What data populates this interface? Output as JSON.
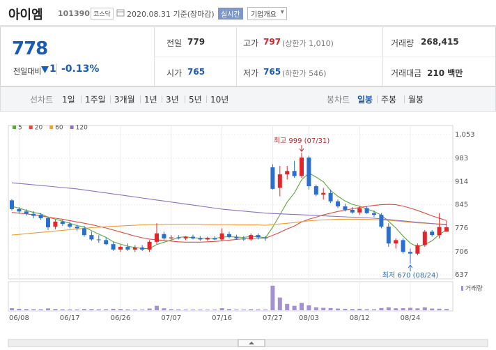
{
  "header": {
    "name": "아이엠",
    "code": "101390",
    "market": "코스닥",
    "date": "2020.08.31 기준(장마감)",
    "realtime": "실시간",
    "company": "기업개요"
  },
  "quote": {
    "price": "778",
    "change_label": "전일대비",
    "change": "1",
    "change_rate": "-0.13%",
    "cells": [
      {
        "label": "전일",
        "value": "779"
      },
      {
        "label": "고가",
        "value": "797",
        "note": "(상한가 1,010)"
      },
      {
        "label": "거래량",
        "value": "268,415"
      },
      {
        "label": "시가",
        "value": "765"
      },
      {
        "label": "저가",
        "value": "765",
        "note": "(하한가 546)"
      },
      {
        "label": "거래대금",
        "value": "210 백만"
      }
    ]
  },
  "tabs": {
    "line_label": "선차트",
    "line_periods": [
      "1일",
      "1주일",
      "3개월",
      "1년",
      "3년",
      "5년",
      "10년"
    ],
    "candle_label": "봉차트",
    "candle_periods": [
      "일봉",
      "주봉",
      "월봉"
    ]
  },
  "chart_data": {
    "type": "candlestick",
    "categories": [
      null,
      "06/08",
      null,
      null,
      null,
      null,
      null,
      null,
      "06/17",
      null,
      null,
      null,
      null,
      null,
      null,
      "06/26",
      null,
      null,
      null,
      null,
      null,
      null,
      "07/07",
      null,
      null,
      null,
      null,
      null,
      null,
      "07/16",
      null,
      null,
      null,
      null,
      null,
      null,
      "07/27",
      null,
      null,
      null,
      null,
      "08/03",
      null,
      null,
      null,
      null,
      null,
      null,
      "08/12",
      null,
      null,
      null,
      null,
      null,
      null,
      "08/24",
      null,
      null,
      null,
      null,
      null
    ],
    "open": [
      858,
      832,
      825,
      818,
      815,
      805,
      780,
      795,
      788,
      780,
      775,
      755,
      742,
      740,
      728,
      712,
      720,
      712,
      718,
      712,
      735,
      758,
      745,
      748,
      745,
      750,
      745,
      742,
      746,
      742,
      758,
      750,
      745,
      742,
      755,
      748,
      956,
      895,
      935,
      945,
      930,
      985,
      900,
      875,
      880,
      855,
      840,
      830,
      822,
      835,
      820,
      815,
      780,
      730,
      740,
      705,
      700,
      725,
      765,
      755,
      765
    ],
    "high": [
      862,
      838,
      832,
      826,
      820,
      810,
      800,
      800,
      795,
      786,
      782,
      765,
      755,
      748,
      735,
      725,
      730,
      725,
      725,
      740,
      790,
      765,
      755,
      755,
      752,
      756,
      752,
      750,
      752,
      775,
      765,
      756,
      752,
      760,
      760,
      752,
      965,
      960,
      960,
      975,
      999,
      990,
      905,
      895,
      890,
      860,
      848,
      838,
      840,
      840,
      828,
      820,
      790,
      745,
      745,
      715,
      730,
      770,
      770,
      820,
      797
    ],
    "low": [
      828,
      818,
      812,
      805,
      800,
      770,
      772,
      782,
      775,
      768,
      750,
      738,
      732,
      725,
      708,
      705,
      708,
      705,
      708,
      705,
      728,
      738,
      740,
      742,
      740,
      742,
      738,
      738,
      740,
      738,
      745,
      742,
      738,
      738,
      742,
      738,
      890,
      870,
      920,
      925,
      925,
      890,
      870,
      860,
      850,
      835,
      825,
      818,
      815,
      818,
      808,
      775,
      720,
      715,
      700,
      670,
      695,
      720,
      750,
      745,
      765
    ],
    "close": [
      832,
      825,
      818,
      812,
      805,
      778,
      795,
      788,
      780,
      775,
      755,
      742,
      740,
      728,
      712,
      720,
      712,
      718,
      712,
      735,
      760,
      745,
      748,
      745,
      750,
      745,
      742,
      746,
      742,
      760,
      750,
      745,
      742,
      755,
      748,
      745,
      892,
      935,
      945,
      930,
      985,
      900,
      875,
      880,
      855,
      840,
      830,
      822,
      835,
      820,
      815,
      780,
      730,
      740,
      705,
      700,
      725,
      765,
      755,
      779,
      778
    ],
    "up_color": "#e2242b",
    "down_color": "#2a6fd0",
    "series": [
      {
        "name": "5",
        "color": "#5aa83b",
        "values": [
          840,
          835,
          828,
          822,
          818,
          808,
          802,
          796,
          790,
          783,
          779,
          768,
          758,
          748,
          735,
          728,
          722,
          718,
          715,
          715,
          727,
          734,
          740,
          748,
          750,
          747,
          746,
          746,
          745,
          749,
          750,
          749,
          748,
          751,
          750,
          747,
          778,
          815,
          853,
          880,
          919,
          939,
          927,
          913,
          887,
          870,
          856,
          846,
          841,
          832,
          825,
          814,
          796,
          776,
          752,
          731,
          720,
          727,
          738,
          757,
          770
        ]
      },
      {
        "name": "20",
        "color": "#e14b3b",
        "values": [
          822,
          820,
          818,
          815,
          812,
          808,
          805,
          802,
          798,
          794,
          790,
          786,
          781,
          776,
          770,
          764,
          758,
          752,
          747,
          743,
          741,
          739,
          737,
          735,
          734,
          734,
          734,
          735,
          736,
          738,
          740,
          742,
          744,
          745,
          746,
          746,
          754,
          763,
          773,
          782,
          794,
          802,
          808,
          815,
          820,
          825,
          829,
          833,
          837,
          840,
          843,
          845,
          846,
          845,
          841,
          835,
          828,
          820,
          812,
          805,
          798
        ]
      },
      {
        "name": "60",
        "color": "#f0a030",
        "values": [
          755,
          757,
          759,
          761,
          763,
          765,
          767,
          769,
          771,
          773,
          775,
          777,
          778,
          780,
          781,
          782,
          783,
          784,
          785,
          786,
          786,
          787,
          787,
          787,
          787,
          787,
          787,
          786,
          786,
          786,
          786,
          785,
          785,
          785,
          785,
          784,
          786,
          788,
          790,
          792,
          795,
          797,
          799,
          800,
          801,
          802,
          802,
          802,
          802,
          802,
          801,
          800,
          799,
          797,
          795,
          793,
          791,
          790,
          789,
          788,
          787
        ]
      },
      {
        "name": "120",
        "color": "#8c72c0",
        "values": [
          910,
          908,
          906,
          904,
          902,
          900,
          898,
          896,
          894,
          892,
          889,
          886,
          883,
          880,
          877,
          874,
          871,
          868,
          865,
          862,
          859,
          856,
          853,
          850,
          847,
          844,
          841,
          838,
          835,
          832,
          830,
          828,
          826,
          824,
          822,
          820,
          819,
          818,
          817,
          816,
          815,
          814,
          813,
          812,
          811,
          810,
          809,
          808,
          807,
          806,
          805,
          803,
          801,
          799,
          797,
          795,
          793,
          791,
          789,
          787,
          785
        ]
      }
    ],
    "ylim": [
      625,
      1080
    ],
    "yticks": [
      {
        "value": 1053,
        "label": "1,053"
      },
      983,
      914,
      845,
      776,
      706,
      637
    ],
    "grid": true,
    "high_label": "최고 999 (07/31)",
    "low_label": "최저 670 (08/24)",
    "volume_name": "거래량",
    "volume_color": "#a392cf",
    "volume": [
      420000,
      300000,
      250000,
      220000,
      200000,
      380000,
      260000,
      200000,
      180000,
      170000,
      260000,
      240000,
      200000,
      220000,
      300000,
      250000,
      180000,
      170000,
      160000,
      350000,
      900000,
      400000,
      220000,
      180000,
      160000,
      150000,
      150000,
      140000,
      150000,
      420000,
      250000,
      170000,
      150000,
      220000,
      180000,
      160000,
      5000000,
      2600000,
      1300000,
      900000,
      1500000,
      1000000,
      600000,
      500000,
      450000,
      350000,
      300000,
      250000,
      300000,
      220000,
      200000,
      450000,
      600000,
      400000,
      420000,
      500000,
      380000,
      600000,
      350000,
      320000,
      268415
    ],
    "volume_ylim": [
      0,
      5400000
    ]
  }
}
